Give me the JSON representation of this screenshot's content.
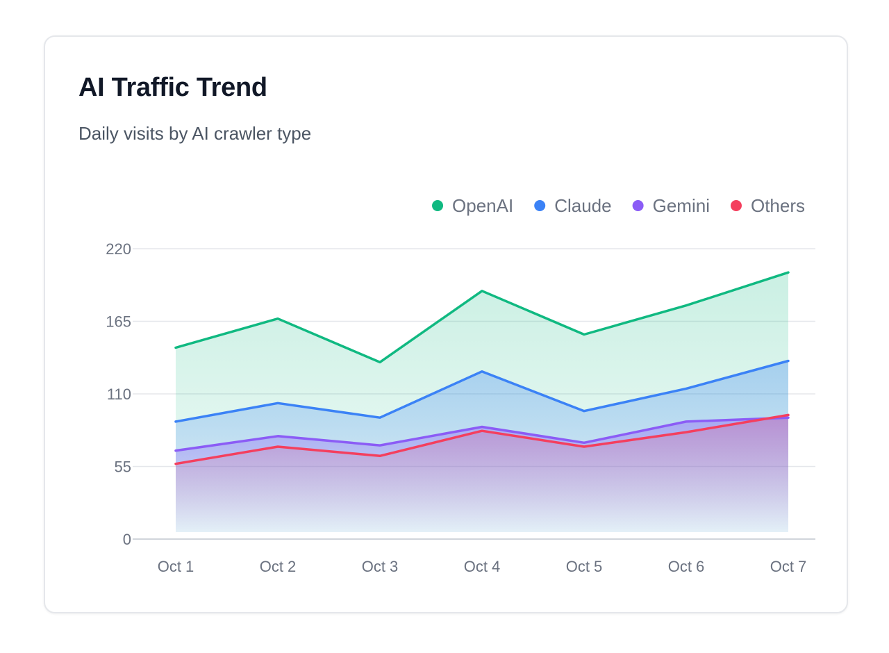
{
  "card": {
    "title": "AI Traffic Trend",
    "subtitle": "Daily visits by AI crawler type"
  },
  "chart_data": {
    "type": "area",
    "title": "AI Traffic Trend",
    "subtitle": "Daily visits by AI crawler type",
    "xlabel": "",
    "ylabel": "",
    "categories": [
      "Oct 1",
      "Oct 2",
      "Oct 3",
      "Oct 4",
      "Oct 5",
      "Oct 6",
      "Oct 7"
    ],
    "ylim": [
      0,
      220
    ],
    "yticks": [
      0,
      55,
      110,
      165,
      220
    ],
    "grid": true,
    "legend_position": "top-right",
    "series": [
      {
        "name": "OpenAI",
        "color": "#10b981",
        "values": [
          145,
          167,
          134,
          188,
          155,
          177,
          202
        ]
      },
      {
        "name": "Claude",
        "color": "#3b82f6",
        "values": [
          89,
          103,
          92,
          127,
          97,
          114,
          135
        ]
      },
      {
        "name": "Gemini",
        "color": "#8b5cf6",
        "values": [
          67,
          78,
          71,
          85,
          73,
          89,
          92
        ]
      },
      {
        "name": "Others",
        "color": "#f43f5e",
        "values": [
          57,
          70,
          63,
          82,
          70,
          81,
          94
        ]
      }
    ]
  }
}
